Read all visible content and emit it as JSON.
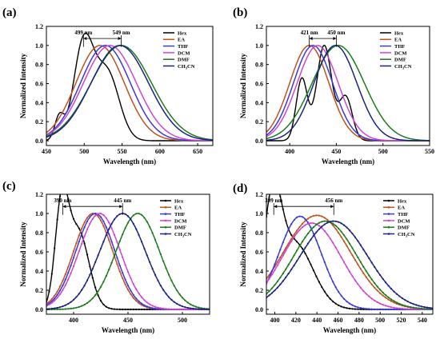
{
  "figure": {
    "legend": [
      "Hex",
      "EA",
      "THF",
      "DCM",
      "DMF",
      "CH3CN"
    ],
    "colors": [
      "#000000",
      "#c0521e",
      "#3a3ad8",
      "#d044d8",
      "#1e7a1e",
      "#1a237e"
    ]
  },
  "chart_data": [
    {
      "panel": "(a)",
      "type": "line",
      "markers": false,
      "xlabel": "Wavelength (nm)",
      "ylabel": "Normalized Intensity",
      "xlim": [
        450,
        670
      ],
      "ylim": [
        -0.05,
        1.2
      ],
      "xticks": [
        450,
        500,
        550,
        600,
        650
      ],
      "yticks": [
        0.0,
        0.2,
        0.4,
        0.6,
        0.8,
        1.0,
        1.2
      ],
      "legend_position": "top-right",
      "grid": false,
      "annotations": [
        {
          "text": "499 nm",
          "x": 499
        },
        {
          "text": "549 nm",
          "x": 549
        }
      ],
      "series": [
        {
          "name": "Hex",
          "peaks": [
            {
              "c": 467,
              "w": 6,
              "a": 0.24
            },
            {
              "c": 499,
              "w": 13,
              "a": 1.0
            },
            {
              "c": 530,
              "w": 16,
              "a": 0.72
            }
          ]
        },
        {
          "name": "EA",
          "peaks": [
            {
              "c": 521,
              "w": 32,
              "a": 1.0
            }
          ]
        },
        {
          "name": "THF",
          "peaks": [
            {
              "c": 528,
              "w": 33,
              "a": 1.0
            }
          ]
        },
        {
          "name": "DCM",
          "peaks": [
            {
              "c": 534,
              "w": 35,
              "a": 1.0
            }
          ]
        },
        {
          "name": "DMF",
          "peaks": [
            {
              "c": 549,
              "w": 40,
              "a": 1.0
            }
          ]
        },
        {
          "name": "CH3CN",
          "peaks": [
            {
              "c": 547,
              "w": 38,
              "a": 1.0
            }
          ]
        }
      ]
    },
    {
      "panel": "(b)",
      "type": "line",
      "markers": false,
      "xlabel": "Wavelength (nm)",
      "ylabel": "Normalized Intensity",
      "xlim": [
        375,
        550
      ],
      "ylim": [
        -0.05,
        1.2
      ],
      "xticks": [
        400,
        450,
        500,
        550
      ],
      "yticks": [
        0.0,
        0.2,
        0.4,
        0.6,
        0.8,
        1.0,
        1.2
      ],
      "legend_position": "top-right",
      "grid": false,
      "annotations": [
        {
          "text": "421 nm",
          "x": 421
        },
        {
          "text": "450 nm",
          "x": 450
        }
      ],
      "series": [
        {
          "name": "Hex",
          "peaks": [
            {
              "c": 413,
              "w": 6,
              "a": 0.65
            },
            {
              "c": 437,
              "w": 8,
              "a": 1.0
            },
            {
              "c": 460,
              "w": 7,
              "a": 0.46
            }
          ]
        },
        {
          "name": "EA",
          "peaks": [
            {
              "c": 421,
              "w": 21,
              "a": 1.0
            }
          ]
        },
        {
          "name": "THF",
          "peaks": [
            {
              "c": 425,
              "w": 21,
              "a": 1.0
            }
          ]
        },
        {
          "name": "DCM",
          "peaks": [
            {
              "c": 430,
              "w": 22,
              "a": 1.0
            }
          ]
        },
        {
          "name": "DMF",
          "peaks": [
            {
              "c": 452,
              "w": 28,
              "a": 1.0
            }
          ]
        },
        {
          "name": "CH3CN",
          "peaks": [
            {
              "c": 449,
              "w": 23,
              "a": 1.0
            }
          ]
        }
      ]
    },
    {
      "panel": "(c)",
      "type": "line",
      "markers": true,
      "xlabel": "Wavelength (nm)",
      "ylabel": "Normalized Intensity",
      "xlim": [
        375,
        525
      ],
      "ylim": [
        -0.05,
        1.2
      ],
      "xticks": [
        400,
        450,
        500
      ],
      "yticks": [
        0.0,
        0.2,
        0.4,
        0.6,
        0.8,
        1.0,
        1.2
      ],
      "legend_position": "top-right",
      "grid": false,
      "annotations": [
        {
          "text": "390 nm",
          "x": 390
        },
        {
          "text": "445 nm",
          "x": 445
        }
      ],
      "series": [
        {
          "name": "Hex",
          "peaks": [
            {
              "c": 389,
              "w": 6,
              "a": 1.0
            },
            {
              "c": 404,
              "w": 10,
              "a": 0.82
            }
          ]
        },
        {
          "name": "EA",
          "peaks": [
            {
              "c": 418,
              "w": 18,
              "a": 1.0
            }
          ]
        },
        {
          "name": "THF",
          "peaks": [
            {
              "c": 420,
              "w": 18,
              "a": 1.0
            }
          ]
        },
        {
          "name": "DCM",
          "peaks": [
            {
              "c": 424,
              "w": 19,
              "a": 1.0
            }
          ]
        },
        {
          "name": "DMF",
          "peaks": [
            {
              "c": 459,
              "w": 20,
              "a": 1.0
            }
          ]
        },
        {
          "name": "CH3CN",
          "peaks": [
            {
              "c": 445,
              "w": 21,
              "a": 1.0
            }
          ]
        }
      ]
    },
    {
      "panel": "(d)",
      "type": "line",
      "markers": true,
      "xlabel": "Wavelength (nm)",
      "ylabel": "Normalized Intensity",
      "xlim": [
        392,
        550
      ],
      "ylim": [
        -0.05,
        1.2
      ],
      "xticks": [
        400,
        420,
        440,
        460,
        480,
        500,
        520,
        540
      ],
      "yticks": [
        0.0,
        0.2,
        0.4,
        0.6,
        0.8,
        1.0,
        1.2
      ],
      "legend_position": "top-right",
      "grid": false,
      "annotations": [
        {
          "text": "399 nm",
          "x": 399
        },
        {
          "text": "456 nm",
          "x": 456
        }
      ],
      "series": [
        {
          "name": "Hex",
          "peaks": [
            {
              "c": 398,
              "w": 8,
              "a": 0.95
            },
            {
              "c": 418,
              "w": 18,
              "a": 0.7
            }
          ]
        },
        {
          "name": "EA",
          "peaks": [
            {
              "c": 440,
              "w": 32,
              "a": 0.98
            }
          ]
        },
        {
          "name": "THF",
          "peaks": [
            {
              "c": 424,
              "w": 20,
              "a": 0.97
            }
          ]
        },
        {
          "name": "DCM",
          "peaks": [
            {
              "c": 435,
              "w": 28,
              "a": 0.9
            }
          ]
        },
        {
          "name": "DMF",
          "peaks": [
            {
              "c": 448,
              "w": 30,
              "a": 0.92
            }
          ]
        },
        {
          "name": "CH3CN",
          "peaks": [
            {
              "c": 456,
              "w": 32,
              "a": 0.92
            }
          ]
        }
      ]
    }
  ]
}
